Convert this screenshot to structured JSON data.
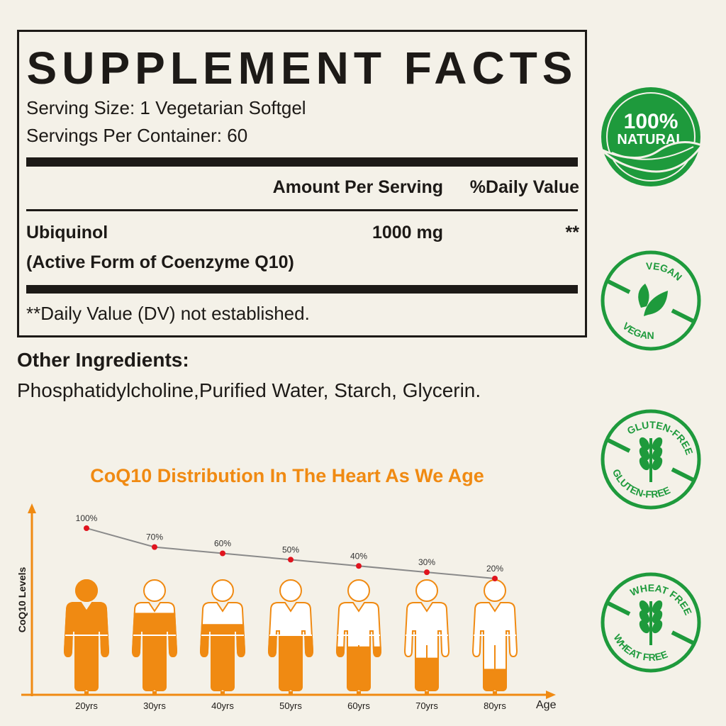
{
  "facts": {
    "title": "SUPPLEMENT FACTS",
    "serving_size": "Serving Size: 1 Vegetarian Softgel",
    "servings_per_container": "Servings Per Container: 60",
    "col_amount": "Amount Per Serving",
    "col_dv": "%Daily Value",
    "ingredient_name": "Ubiquinol",
    "ingredient_sub": "(Active Form of Coenzyme Q10)",
    "ingredient_amount": "1000 mg",
    "ingredient_dv": "**",
    "footnote": "**Daily Value (DV) not established."
  },
  "other_ingredients": {
    "title": "Other Ingredients:",
    "list": "Phosphatidylcholine,Purified Water, Starch, Glycerin."
  },
  "badges": [
    {
      "icon": "leaf-icon",
      "top": "100%",
      "bottom": "NATURAL"
    },
    {
      "icon": "vegan-leaf-icon",
      "top": "VEGAN",
      "bottom": "VEGAN"
    },
    {
      "icon": "wheat-icon",
      "top": "GLUTEN-FREE",
      "bottom": "GLUTEN-FREE"
    },
    {
      "icon": "wheat-icon",
      "top": "WHEAT FREE",
      "bottom": "WHEAT FREE"
    }
  ],
  "colors": {
    "orange": "#f08a12",
    "green": "#1e9a3c",
    "dot": "#e0141e",
    "line": "#8a8a8a"
  },
  "chart_data": {
    "type": "line",
    "title": "CoQ10 Distribution In The Heart As We Age",
    "xlabel": "Age",
    "ylabel": "CoQ10 Levels",
    "categories": [
      "20yrs",
      "30yrs",
      "40yrs",
      "50yrs",
      "60yrs",
      "70yrs",
      "80yrs"
    ],
    "values": [
      100,
      70,
      60,
      50,
      40,
      30,
      20
    ],
    "value_labels": [
      "100%",
      "70%",
      "60%",
      "50%",
      "40%",
      "30%",
      "20%"
    ]
  }
}
